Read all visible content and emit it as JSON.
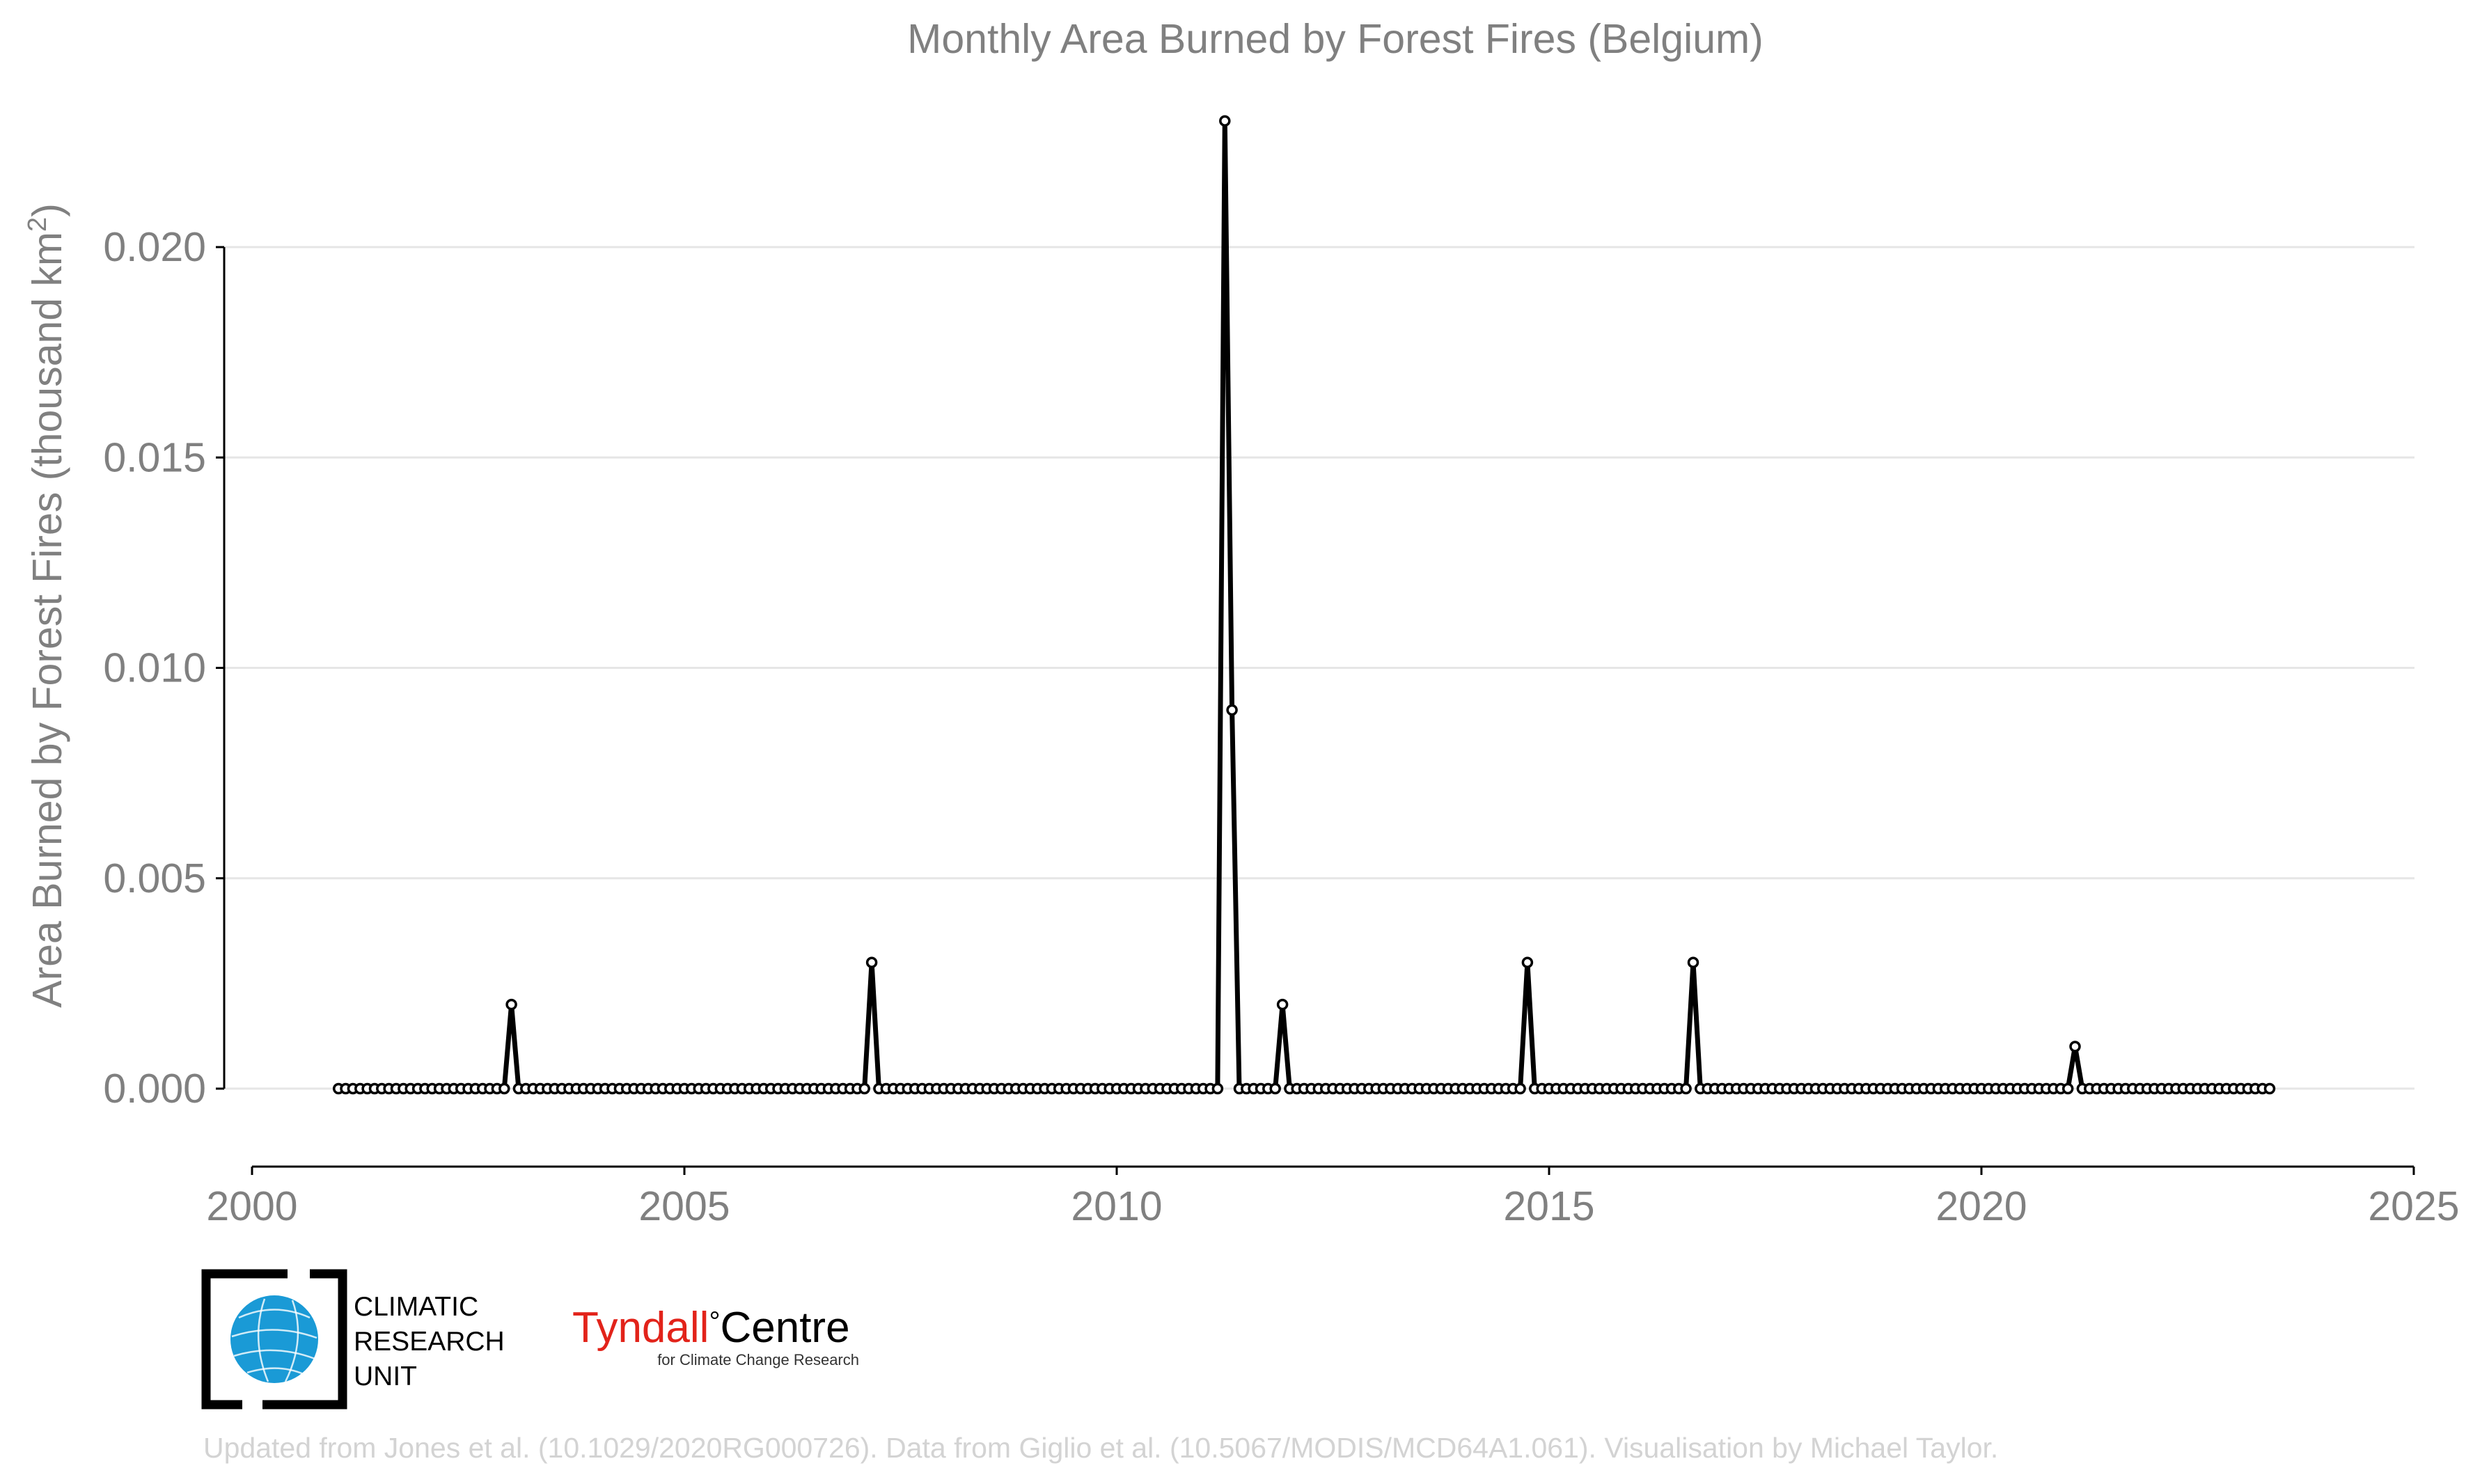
{
  "chart_data": {
    "type": "line",
    "title": "Monthly Area Burned by Forest Fires (Belgium)",
    "ylabel_main": "Area Burned by Forest Fires (thousand km",
    "ylabel_sup": "2",
    "ylabel_end": ")",
    "xlabel": "",
    "xlim": [
      2000,
      2025
    ],
    "ylim": [
      -0.0018,
      0.0237
    ],
    "x_ticks": [
      2000,
      2005,
      2010,
      2015,
      2020,
      2025
    ],
    "x_tick_labels": [
      "2000",
      "2005",
      "2010",
      "2015",
      "2020",
      "2025"
    ],
    "y_ticks": [
      0,
      0.005,
      0.01,
      0.015,
      0.02
    ],
    "y_tick_labels": [
      "0.000",
      "0.005",
      "0.010",
      "0.015",
      "0.020"
    ],
    "grid": "horizontal",
    "legend": "none",
    "series_color": "#000000",
    "marker": "open-circle",
    "start": "2001-01",
    "end": "2023-05",
    "baseline_value": 0,
    "nonzero_points": [
      {
        "date": "2003-01",
        "value": 0.002
      },
      {
        "date": "2007-03",
        "value": 0.003
      },
      {
        "date": "2011-04",
        "value": 0.023
      },
      {
        "date": "2011-05",
        "value": 0.009
      },
      {
        "date": "2011-12",
        "value": 0.002
      },
      {
        "date": "2014-10",
        "value": 0.003
      },
      {
        "date": "2016-09",
        "value": 0.003
      },
      {
        "date": "2021-02",
        "value": 0.001
      }
    ]
  },
  "logos": {
    "cru_line1": "CLIMATIC",
    "cru_line2": "RESEARCH",
    "cru_line3": "UNIT",
    "tyndall_word1": "Tyndall",
    "tyndall_degree": "°",
    "tyndall_word2": "Centre",
    "tyndall_sub": "for Climate Change Research",
    "cru_globe_color": "#1a9ad6",
    "tyndall_red": "#e2231a"
  },
  "footer": "Updated from Jones et al. (10.1029/2020RG000726). Data from Giglio et al. (10.5067/MODIS/MCD64A1.061). Visualisation by Michael Taylor."
}
